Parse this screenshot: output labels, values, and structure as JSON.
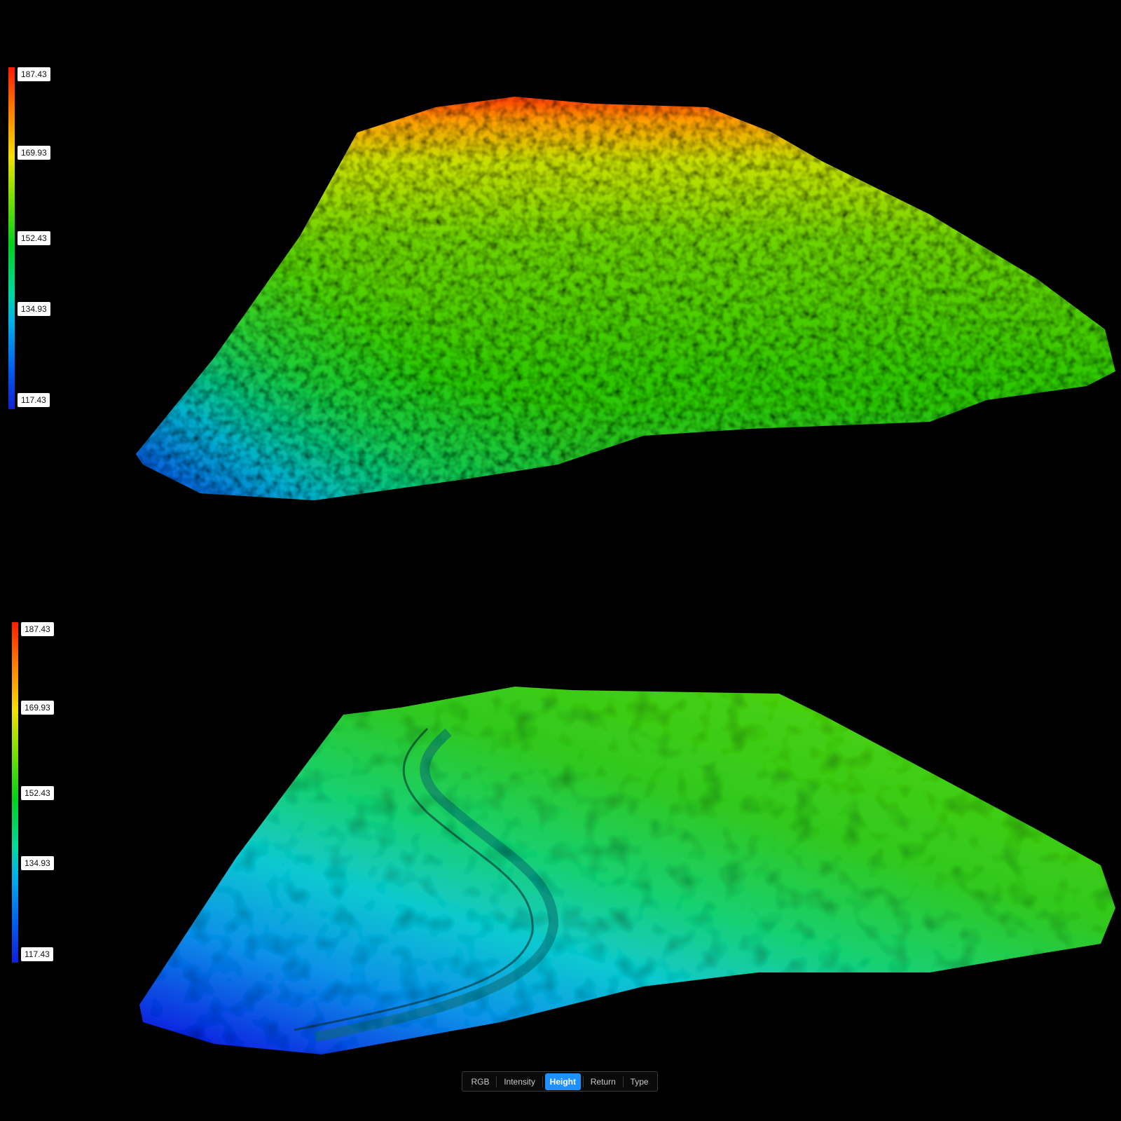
{
  "views": [
    {
      "legend": [
        "187.43",
        "169.93",
        "152.43",
        "134.93",
        "117.43"
      ]
    },
    {
      "legend": [
        "187.43",
        "169.93",
        "152.43",
        "134.93",
        "117.43"
      ]
    }
  ],
  "toolbar": {
    "buttons": [
      {
        "label": "RGB",
        "selected": false
      },
      {
        "label": "Intensity",
        "selected": false
      },
      {
        "label": "Height",
        "selected": true
      },
      {
        "label": "Return",
        "selected": false
      },
      {
        "label": "Type",
        "selected": false
      }
    ]
  }
}
